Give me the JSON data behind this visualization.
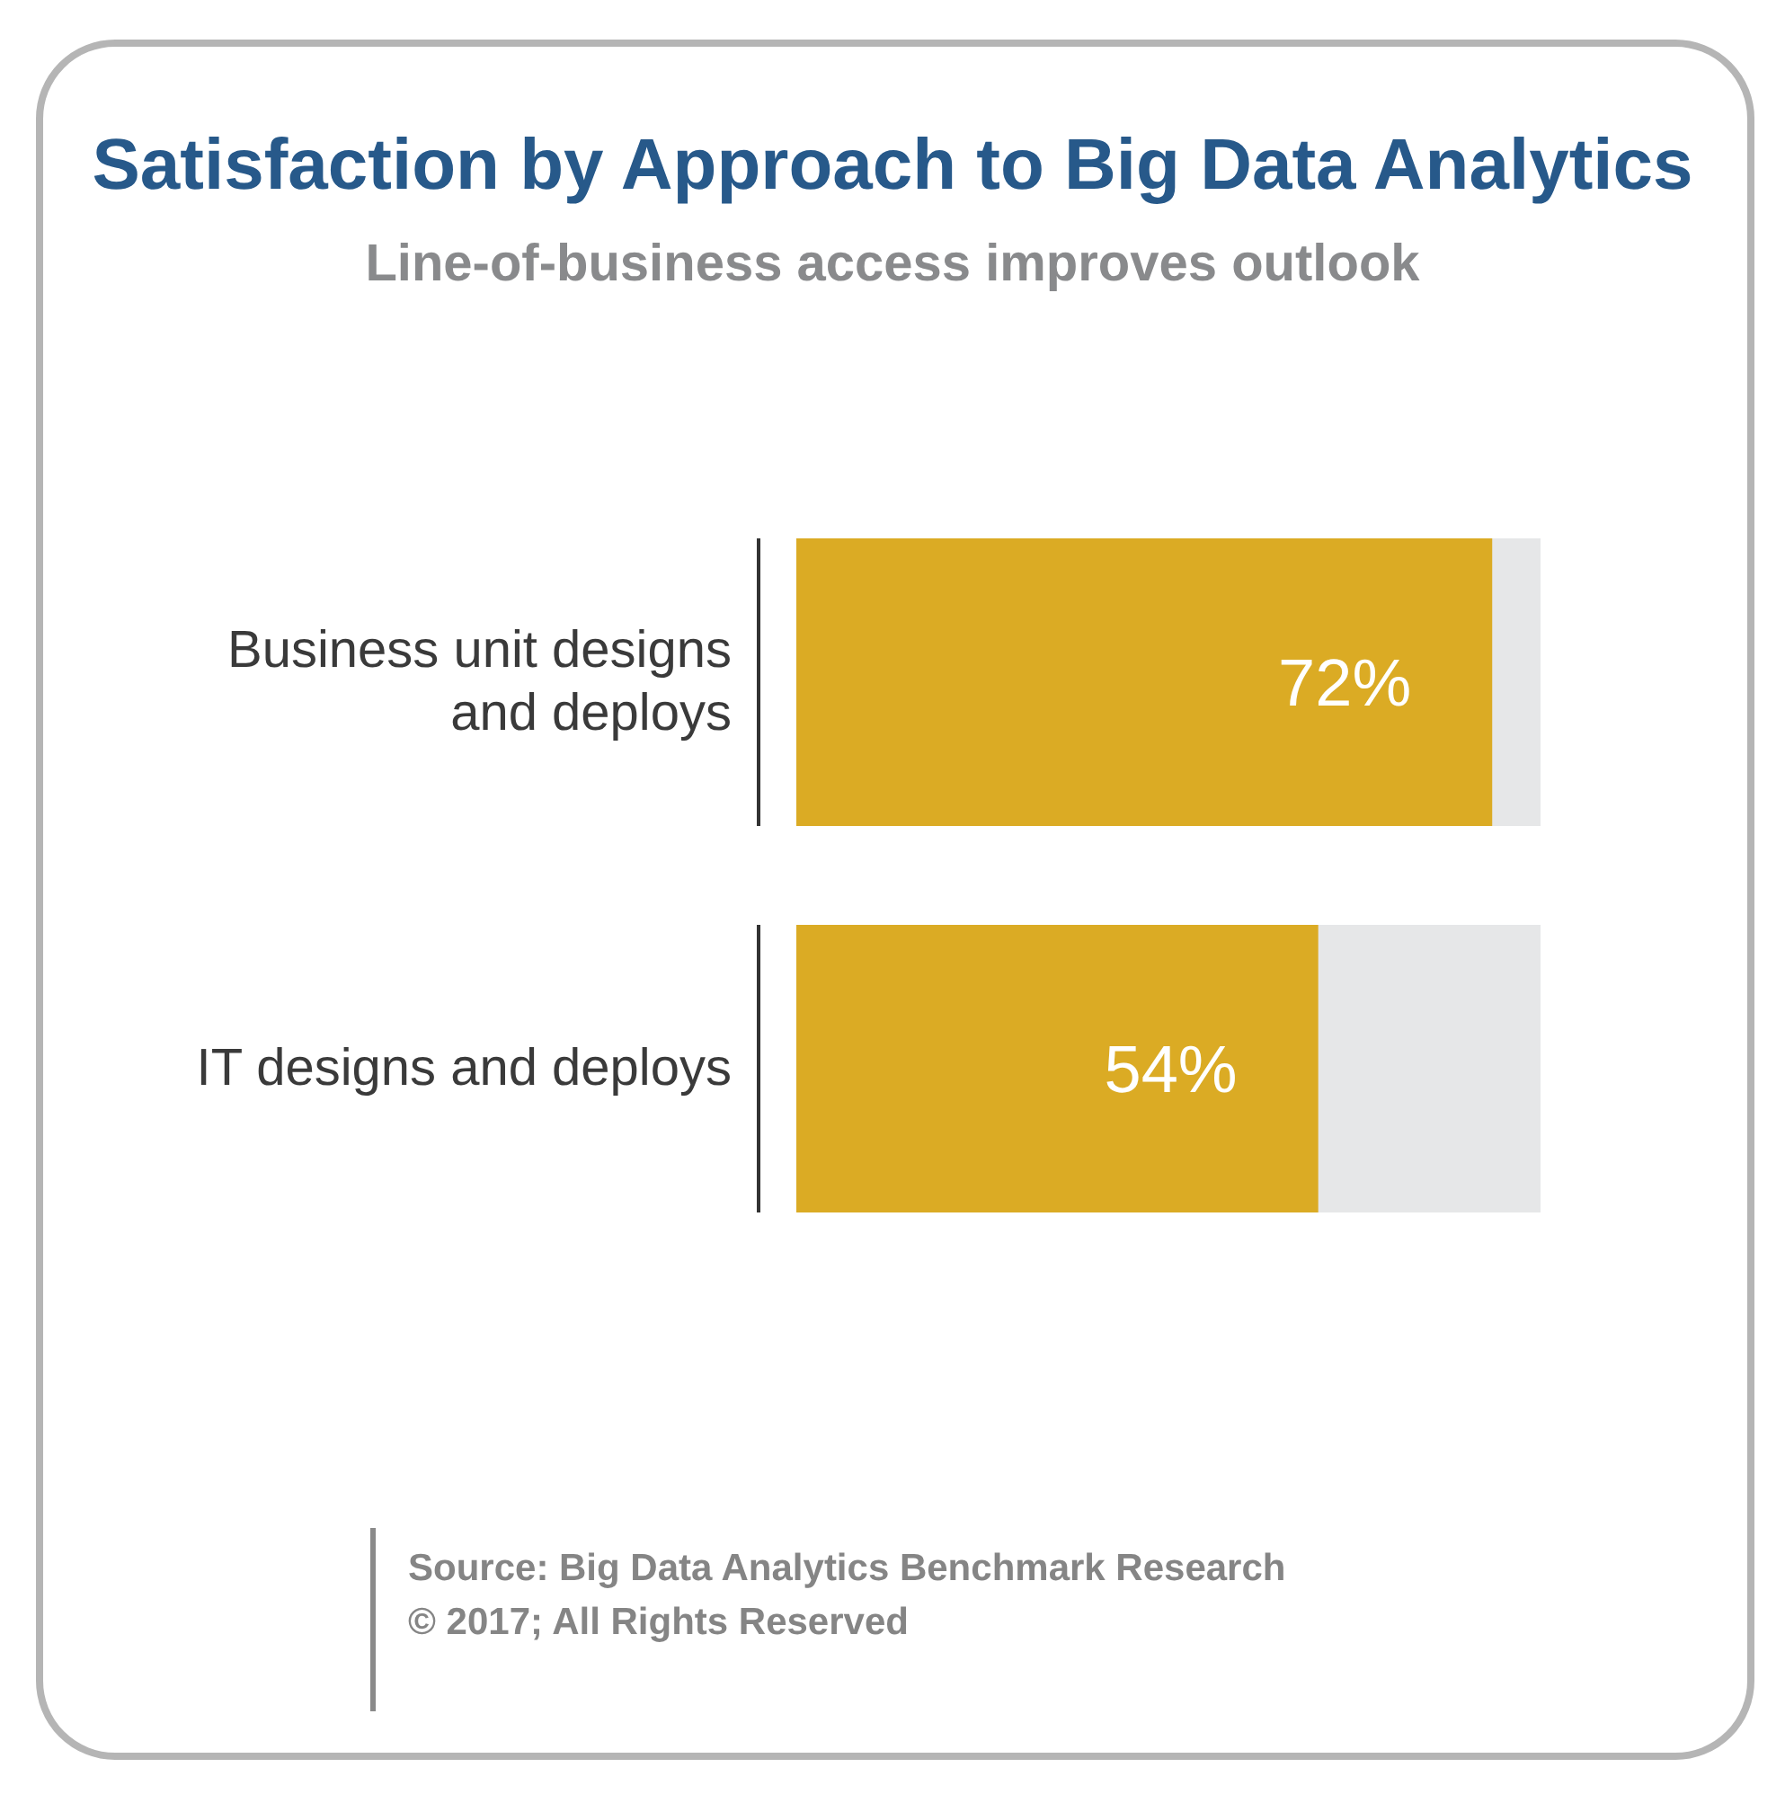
{
  "chart_data": {
    "type": "bar",
    "orientation": "horizontal",
    "title": "Satisfaction by Approach to Big Data Analytics",
    "subtitle": "Line-of-business access improves outlook",
    "categories": [
      "Business unit designs and deploys",
      "IT designs and deploys"
    ],
    "values": [
      72,
      54
    ],
    "value_labels": [
      "72%",
      "54%"
    ],
    "color": "#dbab24",
    "xlim": [
      0,
      77
    ],
    "tick_labels": "y",
    "annotations": [
      "Source: Big Data Analytics Benchmark Research",
      "© 2017; All Rights Reserved"
    ]
  }
}
